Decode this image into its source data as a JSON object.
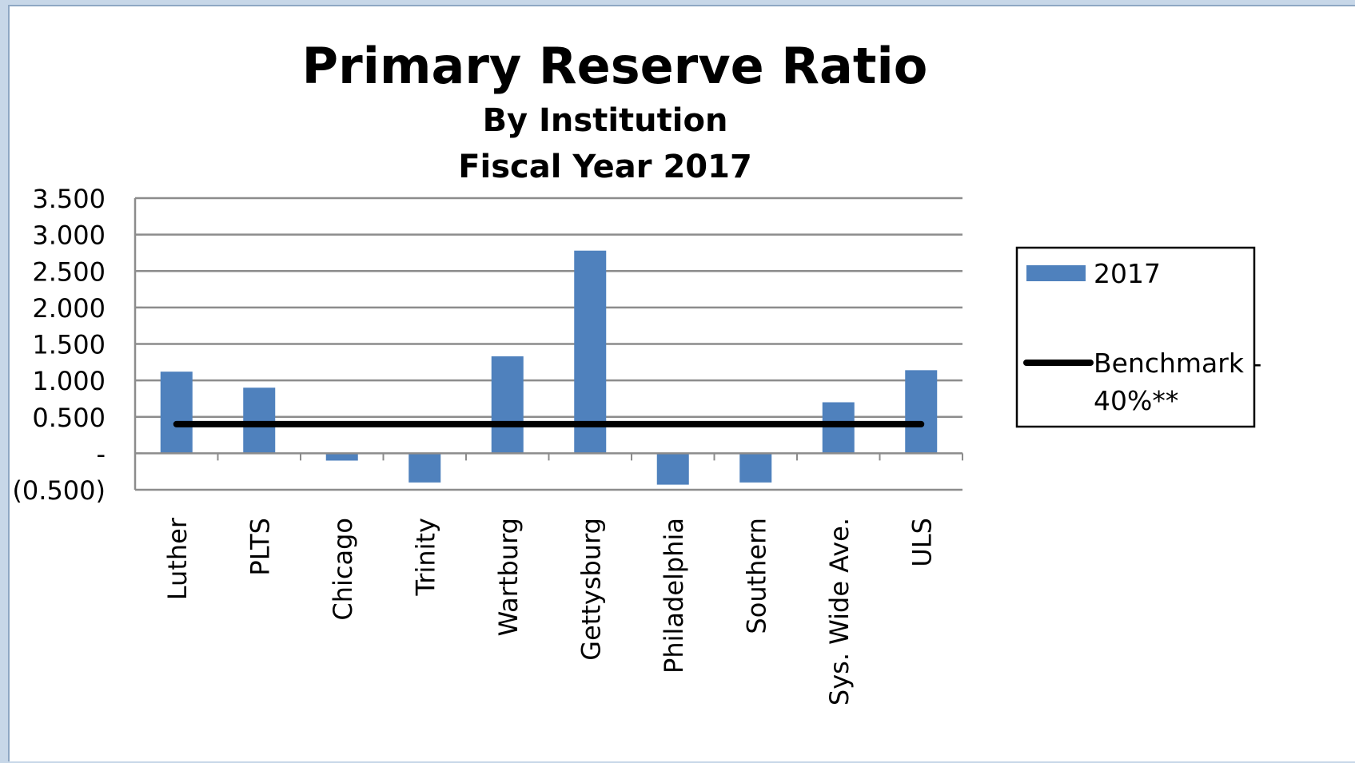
{
  "chart_data": {
    "type": "bar",
    "title": "Primary Reserve Ratio",
    "subtitle_lines": [
      "By Institution",
      "Fiscal Year 2017"
    ],
    "categories": [
      "Luther",
      "PLTS",
      "Chicago",
      "Trinity",
      "Wartburg",
      "Gettysburg",
      "Philadelphia",
      "Southern",
      "Sys. Wide Ave.",
      "ULS"
    ],
    "series": [
      {
        "name": "2017",
        "color": "#4f81bd",
        "values": [
          1.12,
          0.9,
          -0.1,
          -0.4,
          1.33,
          2.78,
          -0.43,
          -0.4,
          0.7,
          1.14
        ]
      }
    ],
    "benchmark": {
      "name_lines": [
        "Benchmark -",
        "40%**"
      ],
      "value": 0.4,
      "color": "#000000"
    },
    "ylim": [
      -0.5,
      3.5
    ],
    "y_ticks": [
      {
        "value": 3.5,
        "label": "3.500"
      },
      {
        "value": 3.0,
        "label": "3.000"
      },
      {
        "value": 2.5,
        "label": "2.500"
      },
      {
        "value": 2.0,
        "label": "2.000"
      },
      {
        "value": 1.5,
        "label": "1.500"
      },
      {
        "value": 1.0,
        "label": "1.000"
      },
      {
        "value": 0.5,
        "label": "0.500"
      },
      {
        "value": 0.0,
        "label": "-"
      },
      {
        "value": -0.5,
        "label": "(0.500)"
      }
    ],
    "grid": true,
    "legend_position": "right"
  }
}
